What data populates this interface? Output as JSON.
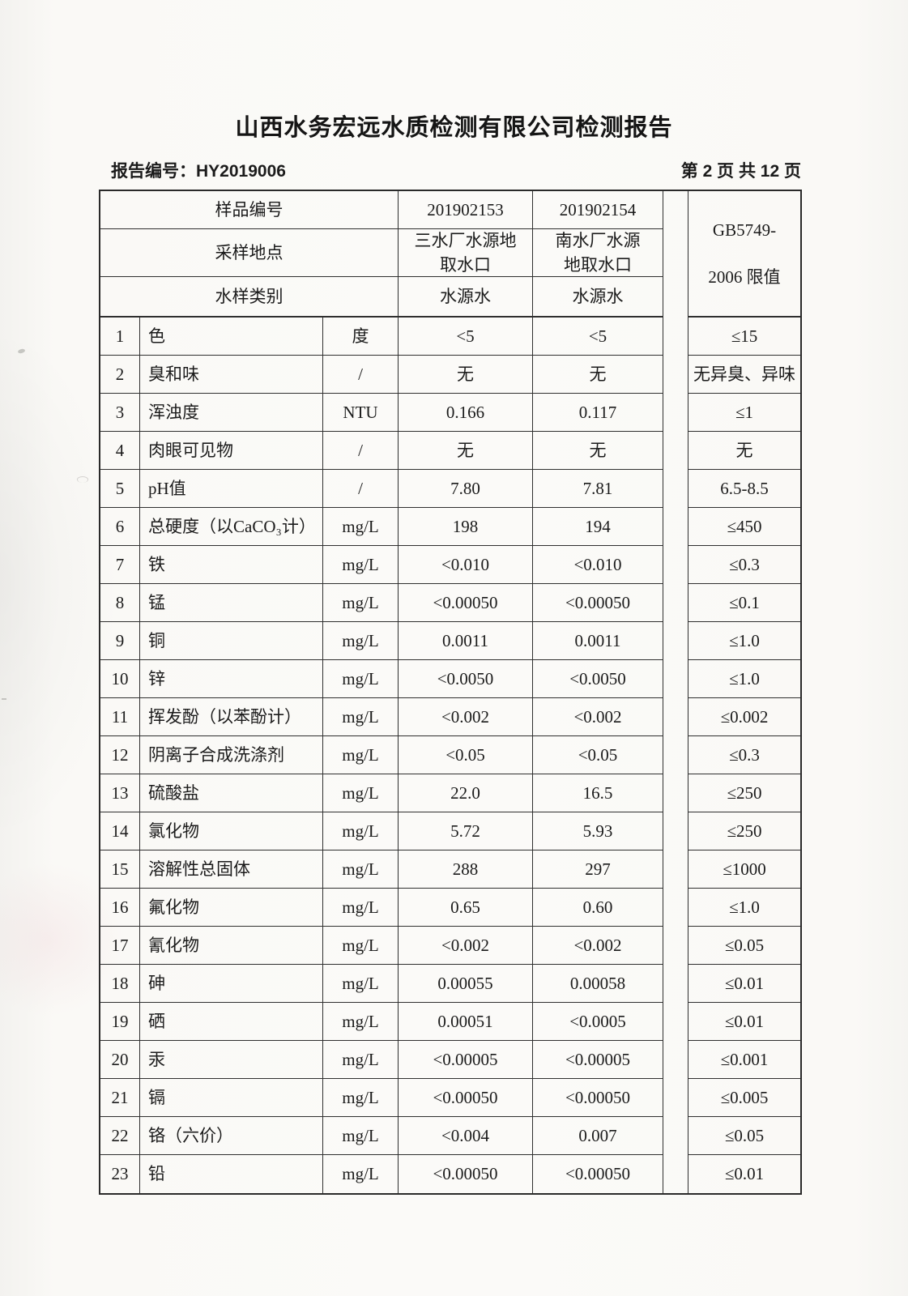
{
  "page": {
    "title": "山西水务宏远水质检测有限公司检测报告",
    "report_no": "报告编号：HY2019006",
    "page_indicator": "第 2 页 共 12 页",
    "colors": {
      "paper": "#faf9f6",
      "ink": "#1b1b1b",
      "table_border": "#2a2a2a"
    }
  },
  "table": {
    "header": {
      "sample_no_label": "样品编号",
      "sampling_site_label": "采样地点",
      "sample_type_label": "水样类别",
      "sample1_no": "201902153",
      "sample2_no": "201902154",
      "sample1_site": "三水厂水源地\n取水口",
      "sample2_site": "南水厂水源\n地取水口",
      "sample1_type": "水源水",
      "sample2_type": "水源水",
      "limit_header_line1": "GB5749-",
      "limit_header_line2": "2006 限值"
    },
    "rows": [
      {
        "no": "1",
        "param": "色",
        "unit": "度",
        "v1": "<5",
        "v2": "<5",
        "limit": "≤15"
      },
      {
        "no": "2",
        "param": "臭和味",
        "unit": "/",
        "v1": "无",
        "v2": "无",
        "limit": "无异臭、异味"
      },
      {
        "no": "3",
        "param": "浑浊度",
        "unit": "NTU",
        "v1": "0.166",
        "v2": "0.117",
        "limit": "≤1"
      },
      {
        "no": "4",
        "param": "肉眼可见物",
        "unit": "/",
        "v1": "无",
        "v2": "无",
        "limit": "无"
      },
      {
        "no": "5",
        "param": "pH值",
        "unit": "/",
        "v1": "7.80",
        "v2": "7.81",
        "limit": "6.5-8.5"
      },
      {
        "no": "6",
        "param": "总硬度（以CaCO₃计）",
        "unit": "mg/L",
        "v1": "198",
        "v2": "194",
        "limit": "≤450"
      },
      {
        "no": "7",
        "param": "铁",
        "unit": "mg/L",
        "v1": "<0.010",
        "v2": "<0.010",
        "limit": "≤0.3"
      },
      {
        "no": "8",
        "param": "锰",
        "unit": "mg/L",
        "v1": "<0.00050",
        "v2": "<0.00050",
        "limit": "≤0.1"
      },
      {
        "no": "9",
        "param": "铜",
        "unit": "mg/L",
        "v1": "0.0011",
        "v2": "0.0011",
        "limit": "≤1.0"
      },
      {
        "no": "10",
        "param": "锌",
        "unit": "mg/L",
        "v1": "<0.0050",
        "v2": "<0.0050",
        "limit": "≤1.0"
      },
      {
        "no": "11",
        "param": "挥发酚（以苯酚计）",
        "unit": "mg/L",
        "v1": "<0.002",
        "v2": "<0.002",
        "limit": "≤0.002"
      },
      {
        "no": "12",
        "param": "阴离子合成洗涤剂",
        "unit": "mg/L",
        "v1": "<0.05",
        "v2": "<0.05",
        "limit": "≤0.3"
      },
      {
        "no": "13",
        "param": "硫酸盐",
        "unit": "mg/L",
        "v1": "22.0",
        "v2": "16.5",
        "limit": "≤250"
      },
      {
        "no": "14",
        "param": "氯化物",
        "unit": "mg/L",
        "v1": "5.72",
        "v2": "5.93",
        "limit": "≤250"
      },
      {
        "no": "15",
        "param": "溶解性总固体",
        "unit": "mg/L",
        "v1": "288",
        "v2": "297",
        "limit": "≤1000"
      },
      {
        "no": "16",
        "param": "氟化物",
        "unit": "mg/L",
        "v1": "0.65",
        "v2": "0.60",
        "limit": "≤1.0"
      },
      {
        "no": "17",
        "param": "氰化物",
        "unit": "mg/L",
        "v1": "<0.002",
        "v2": "<0.002",
        "limit": "≤0.05"
      },
      {
        "no": "18",
        "param": "砷",
        "unit": "mg/L",
        "v1": "0.00055",
        "v2": "0.00058",
        "limit": "≤0.01"
      },
      {
        "no": "19",
        "param": "硒",
        "unit": "mg/L",
        "v1": "0.00051",
        "v2": "<0.0005",
        "limit": "≤0.01"
      },
      {
        "no": "20",
        "param": "汞",
        "unit": "mg/L",
        "v1": "<0.00005",
        "v2": "<0.00005",
        "limit": "≤0.001"
      },
      {
        "no": "21",
        "param": "镉",
        "unit": "mg/L",
        "v1": "<0.00050",
        "v2": "<0.00050",
        "limit": "≤0.005"
      },
      {
        "no": "22",
        "param": "铬（六价）",
        "unit": "mg/L",
        "v1": "<0.004",
        "v2": "0.007",
        "limit": "≤0.05"
      },
      {
        "no": "23",
        "param": "铅",
        "unit": "mg/L",
        "v1": "<0.00050",
        "v2": "<0.00050",
        "limit": "≤0.01"
      }
    ]
  }
}
